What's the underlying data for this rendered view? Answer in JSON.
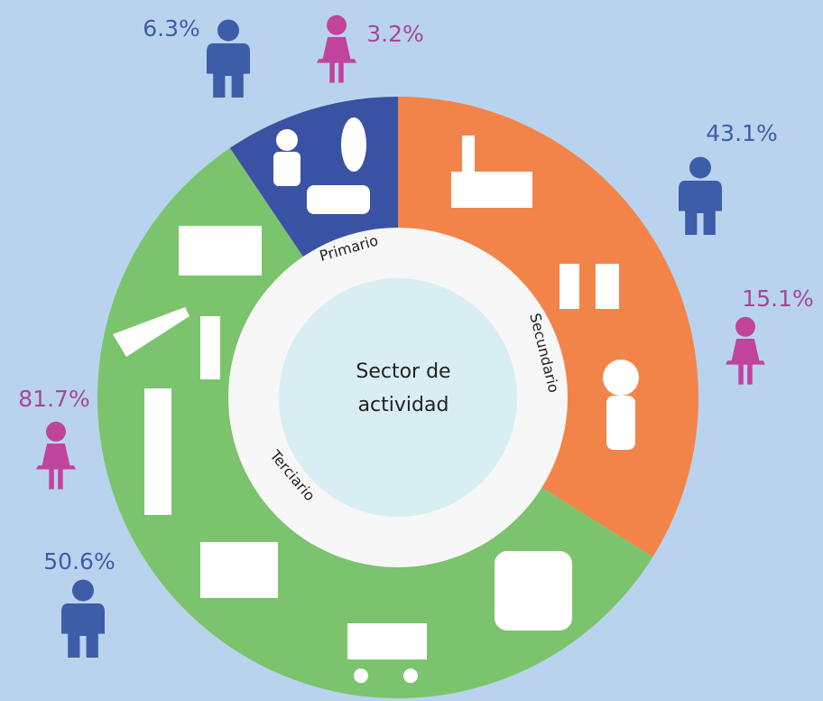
{
  "center_label": [
    "Sector de",
    "actividad"
  ],
  "sectors": [
    {
      "name": "Primario",
      "men": "6.3%",
      "women": "3.2%"
    },
    {
      "name": "Secundario",
      "men": "43.1%",
      "women": "15.1%"
    },
    {
      "name": "Terciario",
      "men": "50.6%",
      "women": "81.7%"
    }
  ]
}
